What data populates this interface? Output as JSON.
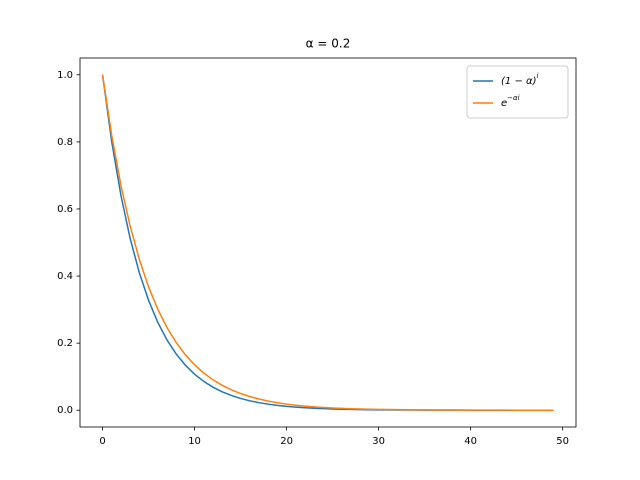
{
  "chart_data": {
    "type": "line",
    "title": "α = 0.2",
    "x": [
      0,
      1,
      2,
      3,
      4,
      5,
      6,
      7,
      8,
      9,
      10,
      11,
      12,
      13,
      14,
      15,
      16,
      17,
      18,
      19,
      20,
      21,
      22,
      23,
      24,
      25,
      26,
      27,
      28,
      29,
      30,
      31,
      32,
      33,
      34,
      35,
      36,
      37,
      38,
      39,
      40,
      41,
      42,
      43,
      44,
      45,
      46,
      47,
      48,
      49
    ],
    "series": [
      {
        "name": "(1 − α)^i",
        "color": "#1f77b4",
        "values": [
          1,
          0.8,
          0.64,
          0.512,
          0.4096,
          0.3277,
          0.2621,
          0.2097,
          0.1678,
          0.1342,
          0.1074,
          0.0859,
          0.0687,
          0.055,
          0.044,
          0.0352,
          0.0281,
          0.0225,
          0.018,
          0.0144,
          0.0115,
          0.0092,
          0.0074,
          0.0059,
          0.0047,
          0.0038,
          0.003,
          0.0024,
          0.0019,
          0.0015,
          0.0012,
          0.001,
          0.0008,
          0.0006,
          0.0005,
          0.0004,
          0.0003,
          0.0003,
          0.0002,
          0.0002,
          0.0001,
          0.0001,
          0.0001,
          0.0001,
          0.0001,
          0,
          0,
          0,
          0,
          0
        ]
      },
      {
        "name": "e^−αi",
        "color": "#ff7f0e",
        "values": [
          1,
          0.8187,
          0.6703,
          0.5488,
          0.4493,
          0.3679,
          0.3012,
          0.2466,
          0.2019,
          0.1653,
          0.1353,
          0.1108,
          0.0907,
          0.0743,
          0.0608,
          0.0498,
          0.0408,
          0.0334,
          0.0273,
          0.0224,
          0.0183,
          0.015,
          0.0123,
          0.0101,
          0.0082,
          0.0067,
          0.0055,
          0.0045,
          0.0037,
          0.003,
          0.0025,
          0.002,
          0.0017,
          0.0014,
          0.0011,
          0.0009,
          0.0007,
          0.0006,
          0.0005,
          0.0004,
          0.0003,
          0.0003,
          0.0002,
          0.0002,
          0.0002,
          0.0001,
          0.0001,
          0.0001,
          0.0001,
          0.0001
        ]
      }
    ],
    "xlim": [
      -2.45,
      51.45
    ],
    "ylim": [
      -0.05,
      1.05
    ],
    "xticks": [
      0,
      10,
      20,
      30,
      40,
      50
    ],
    "yticks": [
      {
        "value": 0,
        "label": "0.0"
      },
      0.2,
      0.4,
      0.6,
      0.8,
      {
        "value": 1,
        "label": "1.0"
      }
    ],
    "grid": false,
    "legend": "upper right"
  }
}
